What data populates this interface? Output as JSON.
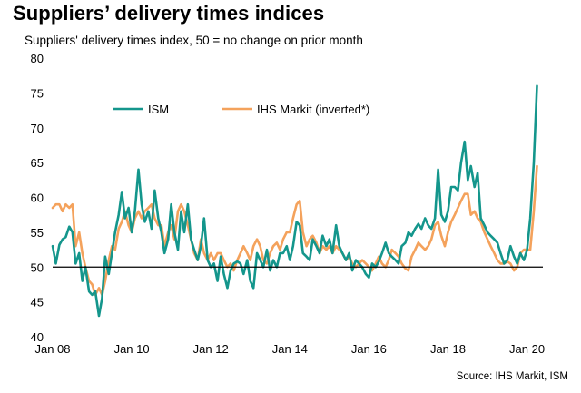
{
  "chart_data": {
    "type": "line",
    "title": "Suppliers’ delivery times indices",
    "subtitle": "Suppliers' delivery times index, 50 = no change on prior month",
    "source": "Source: IHS Markit, ISM",
    "ylim": [
      40,
      80
    ],
    "yticks": [
      40,
      45,
      50,
      55,
      60,
      65,
      70,
      75,
      80
    ],
    "xlim": [
      2008.0,
      2020.4
    ],
    "xticks": [
      {
        "value": 2008,
        "label": "Jan 08"
      },
      {
        "value": 2010,
        "label": "Jan 10"
      },
      {
        "value": 2012,
        "label": "Jan 12"
      },
      {
        "value": 2014,
        "label": "Jan 14"
      },
      {
        "value": 2016,
        "label": "Jan 16"
      },
      {
        "value": 2018,
        "label": "Jan 18"
      },
      {
        "value": 2020,
        "label": "Jan 20"
      }
    ],
    "reference_line": 50,
    "legend_position": "top-left",
    "series": [
      {
        "name": "ISM",
        "color": "#14968c",
        "points": [
          [
            2008.0,
            53.0
          ],
          [
            2008.08,
            50.5
          ],
          [
            2008.17,
            53.2
          ],
          [
            2008.25,
            54.0
          ],
          [
            2008.33,
            54.3
          ],
          [
            2008.42,
            55.8
          ],
          [
            2008.5,
            55.0
          ],
          [
            2008.58,
            50.5
          ],
          [
            2008.67,
            52.0
          ],
          [
            2008.75,
            48.0
          ],
          [
            2008.83,
            50.0
          ],
          [
            2008.92,
            46.5
          ],
          [
            2009.0,
            46.0
          ],
          [
            2009.08,
            46.5
          ],
          [
            2009.17,
            43.0
          ],
          [
            2009.25,
            45.5
          ],
          [
            2009.33,
            51.5
          ],
          [
            2009.42,
            49.0
          ],
          [
            2009.5,
            52.0
          ],
          [
            2009.58,
            55.0
          ],
          [
            2009.67,
            57.5
          ],
          [
            2009.75,
            60.8
          ],
          [
            2009.83,
            57.0
          ],
          [
            2009.92,
            58.5
          ],
          [
            2010.0,
            55.0
          ],
          [
            2010.08,
            58.0
          ],
          [
            2010.17,
            64.0
          ],
          [
            2010.25,
            59.0
          ],
          [
            2010.33,
            56.5
          ],
          [
            2010.42,
            58.0
          ],
          [
            2010.5,
            55.5
          ],
          [
            2010.58,
            61.0
          ],
          [
            2010.67,
            57.0
          ],
          [
            2010.75,
            55.0
          ],
          [
            2010.83,
            52.0
          ],
          [
            2010.92,
            54.0
          ],
          [
            2011.0,
            59.0
          ],
          [
            2011.08,
            55.0
          ],
          [
            2011.17,
            52.5
          ],
          [
            2011.25,
            58.0
          ],
          [
            2011.33,
            55.0
          ],
          [
            2011.42,
            59.0
          ],
          [
            2011.5,
            54.0
          ],
          [
            2011.58,
            52.5
          ],
          [
            2011.67,
            51.0
          ],
          [
            2011.75,
            53.0
          ],
          [
            2011.83,
            57.0
          ],
          [
            2011.92,
            51.0
          ],
          [
            2012.0,
            50.0
          ],
          [
            2012.08,
            50.5
          ],
          [
            2012.17,
            48.0
          ],
          [
            2012.25,
            51.5
          ],
          [
            2012.33,
            49.0
          ],
          [
            2012.42,
            47.0
          ],
          [
            2012.5,
            49.5
          ],
          [
            2012.58,
            50.5
          ],
          [
            2012.67,
            50.8
          ],
          [
            2012.75,
            50.5
          ],
          [
            2012.83,
            49.0
          ],
          [
            2012.92,
            51.0
          ],
          [
            2013.0,
            48.0
          ],
          [
            2013.08,
            47.0
          ],
          [
            2013.17,
            52.0
          ],
          [
            2013.25,
            51.0
          ],
          [
            2013.33,
            50.0
          ],
          [
            2013.42,
            52.5
          ],
          [
            2013.5,
            49.5
          ],
          [
            2013.58,
            51.0
          ],
          [
            2013.67,
            50.0
          ],
          [
            2013.75,
            52.0
          ],
          [
            2013.83,
            52.0
          ],
          [
            2013.92,
            53.0
          ],
          [
            2014.0,
            51.0
          ],
          [
            2014.08,
            53.0
          ],
          [
            2014.17,
            56.5
          ],
          [
            2014.25,
            56.0
          ],
          [
            2014.33,
            52.0
          ],
          [
            2014.42,
            51.5
          ],
          [
            2014.5,
            51.0
          ],
          [
            2014.58,
            54.0
          ],
          [
            2014.67,
            53.0
          ],
          [
            2014.75,
            52.0
          ],
          [
            2014.83,
            54.5
          ],
          [
            2014.92,
            53.0
          ],
          [
            2015.0,
            54.0
          ],
          [
            2015.08,
            52.0
          ],
          [
            2015.17,
            56.0
          ],
          [
            2015.25,
            53.0
          ],
          [
            2015.33,
            52.0
          ],
          [
            2015.42,
            51.0
          ],
          [
            2015.5,
            52.0
          ],
          [
            2015.58,
            49.5
          ],
          [
            2015.67,
            51.0
          ],
          [
            2015.75,
            50.5
          ],
          [
            2015.83,
            50.0
          ],
          [
            2015.92,
            49.0
          ],
          [
            2016.0,
            48.5
          ],
          [
            2016.08,
            50.5
          ],
          [
            2016.17,
            50.0
          ],
          [
            2016.25,
            50.8
          ],
          [
            2016.33,
            52.0
          ],
          [
            2016.42,
            53.5
          ],
          [
            2016.5,
            52.0
          ],
          [
            2016.58,
            51.5
          ],
          [
            2016.67,
            51.0
          ],
          [
            2016.75,
            50.5
          ],
          [
            2016.83,
            53.0
          ],
          [
            2016.92,
            53.5
          ],
          [
            2017.0,
            55.0
          ],
          [
            2017.08,
            54.5
          ],
          [
            2017.17,
            55.5
          ],
          [
            2017.25,
            56.2
          ],
          [
            2017.33,
            55.5
          ],
          [
            2017.42,
            57.0
          ],
          [
            2017.5,
            56.0
          ],
          [
            2017.58,
            55.5
          ],
          [
            2017.67,
            57.0
          ],
          [
            2017.75,
            64.0
          ],
          [
            2017.83,
            57.5
          ],
          [
            2017.92,
            56.5
          ],
          [
            2018.0,
            58.0
          ],
          [
            2018.08,
            61.5
          ],
          [
            2018.17,
            61.5
          ],
          [
            2018.25,
            61.0
          ],
          [
            2018.33,
            65.0
          ],
          [
            2018.42,
            68.0
          ],
          [
            2018.5,
            62.5
          ],
          [
            2018.58,
            64.5
          ],
          [
            2018.67,
            61.5
          ],
          [
            2018.75,
            63.5
          ],
          [
            2018.83,
            57.0
          ],
          [
            2018.92,
            56.0
          ],
          [
            2019.0,
            55.0
          ],
          [
            2019.08,
            54.5
          ],
          [
            2019.17,
            54.0
          ],
          [
            2019.25,
            53.5
          ],
          [
            2019.33,
            52.0
          ],
          [
            2019.42,
            50.5
          ],
          [
            2019.5,
            51.0
          ],
          [
            2019.58,
            53.0
          ],
          [
            2019.67,
            51.5
          ],
          [
            2019.75,
            50.5
          ],
          [
            2019.83,
            52.0
          ],
          [
            2019.92,
            51.0
          ],
          [
            2020.0,
            52.5
          ],
          [
            2020.08,
            57.0
          ],
          [
            2020.17,
            65.0
          ],
          [
            2020.25,
            76.0
          ]
        ]
      },
      {
        "name": "IHS Markit (inverted*)",
        "color": "#f4a25c",
        "points": [
          [
            2008.0,
            58.5
          ],
          [
            2008.08,
            59.0
          ],
          [
            2008.17,
            59.0
          ],
          [
            2008.25,
            58.0
          ],
          [
            2008.33,
            59.0
          ],
          [
            2008.42,
            58.5
          ],
          [
            2008.5,
            59.0
          ],
          [
            2008.58,
            53.0
          ],
          [
            2008.67,
            55.0
          ],
          [
            2008.75,
            52.0
          ],
          [
            2008.83,
            50.0
          ],
          [
            2008.92,
            48.0
          ],
          [
            2009.0,
            47.5
          ],
          [
            2009.08,
            46.0
          ],
          [
            2009.17,
            47.0
          ],
          [
            2009.25,
            46.0
          ],
          [
            2009.33,
            48.0
          ],
          [
            2009.42,
            51.0
          ],
          [
            2009.5,
            53.0
          ],
          [
            2009.58,
            52.5
          ],
          [
            2009.67,
            55.5
          ],
          [
            2009.75,
            56.5
          ],
          [
            2009.83,
            58.0
          ],
          [
            2009.92,
            56.0
          ],
          [
            2010.0,
            55.0
          ],
          [
            2010.08,
            57.0
          ],
          [
            2010.17,
            58.0
          ],
          [
            2010.25,
            57.0
          ],
          [
            2010.33,
            58.0
          ],
          [
            2010.42,
            58.5
          ],
          [
            2010.5,
            59.0
          ],
          [
            2010.58,
            57.0
          ],
          [
            2010.67,
            56.0
          ],
          [
            2010.75,
            56.0
          ],
          [
            2010.83,
            53.0
          ],
          [
            2010.92,
            55.0
          ],
          [
            2011.0,
            56.0
          ],
          [
            2011.08,
            54.0
          ],
          [
            2011.17,
            58.0
          ],
          [
            2011.25,
            59.0
          ],
          [
            2011.33,
            58.0
          ],
          [
            2011.42,
            56.0
          ],
          [
            2011.5,
            54.0
          ],
          [
            2011.58,
            52.0
          ],
          [
            2011.67,
            51.0
          ],
          [
            2011.75,
            54.0
          ],
          [
            2011.83,
            52.0
          ],
          [
            2011.92,
            51.0
          ],
          [
            2012.0,
            52.0
          ],
          [
            2012.08,
            51.0
          ],
          [
            2012.17,
            52.0
          ],
          [
            2012.25,
            52.0
          ],
          [
            2012.33,
            51.0
          ],
          [
            2012.42,
            50.0
          ],
          [
            2012.5,
            50.5
          ],
          [
            2012.58,
            49.5
          ],
          [
            2012.67,
            51.0
          ],
          [
            2012.75,
            52.0
          ],
          [
            2012.83,
            53.0
          ],
          [
            2012.92,
            52.0
          ],
          [
            2013.0,
            51.0
          ],
          [
            2013.08,
            53.0
          ],
          [
            2013.17,
            54.0
          ],
          [
            2013.25,
            53.0
          ],
          [
            2013.33,
            51.0
          ],
          [
            2013.42,
            50.5
          ],
          [
            2013.5,
            52.0
          ],
          [
            2013.58,
            53.0
          ],
          [
            2013.67,
            53.5
          ],
          [
            2013.75,
            52.5
          ],
          [
            2013.83,
            54.0
          ],
          [
            2013.92,
            55.0
          ],
          [
            2014.0,
            55.0
          ],
          [
            2014.08,
            57.0
          ],
          [
            2014.17,
            59.0
          ],
          [
            2014.25,
            59.5
          ],
          [
            2014.33,
            55.0
          ],
          [
            2014.42,
            53.0
          ],
          [
            2014.5,
            54.0
          ],
          [
            2014.58,
            54.5
          ],
          [
            2014.67,
            53.5
          ],
          [
            2014.75,
            52.0
          ],
          [
            2014.83,
            53.0
          ],
          [
            2014.92,
            52.5
          ],
          [
            2015.0,
            53.0
          ],
          [
            2015.08,
            52.0
          ],
          [
            2015.17,
            53.0
          ],
          [
            2015.25,
            52.5
          ],
          [
            2015.33,
            52.0
          ],
          [
            2015.42,
            51.0
          ],
          [
            2015.5,
            51.5
          ],
          [
            2015.58,
            50.5
          ],
          [
            2015.67,
            50.0
          ],
          [
            2015.75,
            50.5
          ],
          [
            2015.83,
            51.0
          ],
          [
            2015.92,
            50.5
          ],
          [
            2016.0,
            50.0
          ],
          [
            2016.08,
            49.5
          ],
          [
            2016.17,
            50.5
          ],
          [
            2016.25,
            51.5
          ],
          [
            2016.33,
            50.5
          ],
          [
            2016.42,
            50.0
          ],
          [
            2016.5,
            51.0
          ],
          [
            2016.58,
            52.5
          ],
          [
            2016.67,
            52.0
          ],
          [
            2016.75,
            51.5
          ],
          [
            2016.83,
            50.5
          ],
          [
            2016.92,
            49.8
          ],
          [
            2017.0,
            49.5
          ],
          [
            2017.08,
            51.5
          ],
          [
            2017.17,
            52.5
          ],
          [
            2017.25,
            53.5
          ],
          [
            2017.33,
            53.0
          ],
          [
            2017.42,
            52.5
          ],
          [
            2017.5,
            53.0
          ],
          [
            2017.58,
            54.0
          ],
          [
            2017.67,
            56.0
          ],
          [
            2017.75,
            56.5
          ],
          [
            2017.83,
            54.5
          ],
          [
            2017.92,
            53.0
          ],
          [
            2018.0,
            55.0
          ],
          [
            2018.08,
            56.5
          ],
          [
            2018.17,
            57.5
          ],
          [
            2018.25,
            58.5
          ],
          [
            2018.33,
            59.5
          ],
          [
            2018.42,
            60.5
          ],
          [
            2018.5,
            60.5
          ],
          [
            2018.58,
            57.5
          ],
          [
            2018.67,
            58.0
          ],
          [
            2018.75,
            57.0
          ],
          [
            2018.83,
            56.5
          ],
          [
            2018.92,
            55.0
          ],
          [
            2019.0,
            54.0
          ],
          [
            2019.08,
            53.0
          ],
          [
            2019.17,
            52.0
          ],
          [
            2019.25,
            51.0
          ],
          [
            2019.33,
            50.5
          ],
          [
            2019.42,
            50.5
          ],
          [
            2019.5,
            50.8
          ],
          [
            2019.58,
            50.5
          ],
          [
            2019.67,
            49.5
          ],
          [
            2019.75,
            50.0
          ],
          [
            2019.83,
            52.0
          ],
          [
            2019.92,
            52.5
          ],
          [
            2020.0,
            52.5
          ],
          [
            2020.08,
            52.5
          ],
          [
            2020.17,
            58.0
          ],
          [
            2020.25,
            64.5
          ]
        ]
      }
    ]
  }
}
